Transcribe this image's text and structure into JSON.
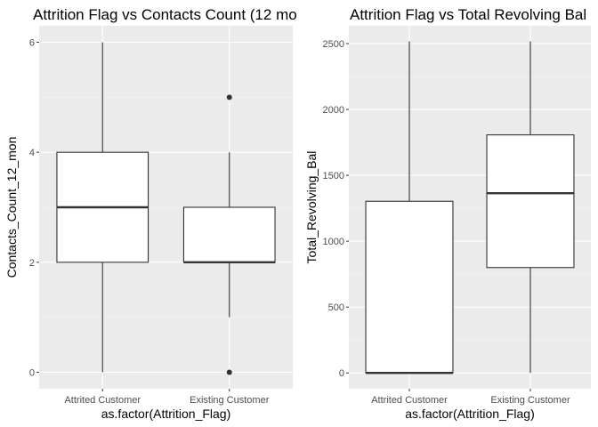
{
  "chart_data": [
    {
      "type": "boxplot",
      "title": "Attrition Flag vs Contacts Count (12 mo",
      "xlabel": "as.factor(Attrition_Flag)",
      "ylabel": "Contacts_Count_12_mon",
      "ylim": [
        -0.3,
        6.3
      ],
      "yticks": [
        0,
        2,
        4,
        6
      ],
      "yticklabels": [
        "0",
        "2",
        "4",
        "6"
      ],
      "grid": true,
      "categories": [
        "Attrited Customer",
        "Existing Customer"
      ],
      "boxes": [
        {
          "min": 0,
          "q1": 2,
          "median": 3,
          "q3": 4,
          "max": 6,
          "outliers": []
        },
        {
          "min": 1,
          "q1": 2,
          "median": 2,
          "q3": 3,
          "max": 4,
          "outliers": [
            0,
            5
          ]
        }
      ]
    },
    {
      "type": "boxplot",
      "title": "Attrition Flag vs Total Revolving Bal",
      "xlabel": "as.factor(Attrition_Flag)",
      "ylabel": "Total_Revolving_Bal",
      "ylim": [
        -120,
        2635
      ],
      "yticks": [
        0,
        500,
        1000,
        1500,
        2000,
        2500
      ],
      "yticklabels": [
        "0",
        "500",
        "1000",
        "1500",
        "2000",
        "2500"
      ],
      "grid": true,
      "categories": [
        "Attrited Customer",
        "Existing Customer"
      ],
      "boxes": [
        {
          "min": 0,
          "q1": 0,
          "median": 0,
          "q3": 1303,
          "max": 2517,
          "outliers": []
        },
        {
          "min": 0,
          "q1": 800,
          "median": 1364,
          "q3": 1807,
          "max": 2517,
          "outliers": []
        }
      ]
    }
  ]
}
